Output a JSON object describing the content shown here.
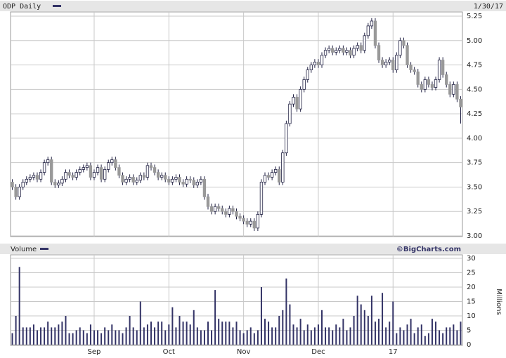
{
  "chart_data": [
    {
      "type": "candlestick",
      "title": "ODP Daily",
      "date": "1/30/17",
      "up_color": "#ffffff",
      "down_color": "#999999",
      "outline_color": "#222244",
      "legend_color": "#333366",
      "grid": true,
      "open": [
        3.55,
        3.5,
        3.4,
        3.5,
        3.55,
        3.58,
        3.6,
        3.62,
        3.58,
        3.65,
        3.75,
        3.78,
        3.55,
        3.52,
        3.54,
        3.58,
        3.65,
        3.62,
        3.6,
        3.65,
        3.68,
        3.7,
        3.72,
        3.6,
        3.65,
        3.7,
        3.58,
        3.68,
        3.75,
        3.78,
        3.7,
        3.62,
        3.55,
        3.58,
        3.6,
        3.55,
        3.57,
        3.62,
        3.6,
        3.72,
        3.7,
        3.65,
        3.6,
        3.62,
        3.58,
        3.55,
        3.58,
        3.6,
        3.55,
        3.53,
        3.58,
        3.57,
        3.52,
        3.55,
        3.58,
        3.4,
        3.3,
        3.25,
        3.3,
        3.28,
        3.25,
        3.22,
        3.28,
        3.25,
        3.2,
        3.18,
        3.15,
        3.12,
        3.15,
        3.08,
        3.22,
        3.55,
        3.62,
        3.6,
        3.65,
        3.68,
        3.55,
        3.85,
        4.15,
        4.35,
        4.42,
        4.3,
        4.5,
        4.6,
        4.7,
        4.75,
        4.78,
        4.75,
        4.85,
        4.9,
        4.92,
        4.88,
        4.9,
        4.92,
        4.88,
        4.9,
        4.85,
        4.92,
        4.95,
        4.9,
        5.05,
        5.15,
        5.2,
        4.95,
        4.8,
        4.75,
        4.78,
        4.8,
        4.7,
        4.85,
        5.0,
        4.95,
        4.75,
        4.7,
        4.68,
        4.55,
        4.5,
        4.6,
        4.55,
        4.52,
        4.6,
        4.8,
        4.65,
        4.55,
        4.45,
        4.55,
        4.4
      ],
      "high": [
        3.58,
        3.53,
        3.53,
        3.58,
        3.61,
        3.63,
        3.65,
        3.65,
        3.68,
        3.78,
        3.81,
        3.81,
        3.58,
        3.57,
        3.61,
        3.68,
        3.68,
        3.65,
        3.68,
        3.71,
        3.73,
        3.75,
        3.75,
        3.68,
        3.73,
        3.73,
        3.71,
        3.78,
        3.81,
        3.81,
        3.73,
        3.65,
        3.61,
        3.63,
        3.63,
        3.6,
        3.65,
        3.65,
        3.75,
        3.75,
        3.73,
        3.68,
        3.65,
        3.65,
        3.61,
        3.61,
        3.63,
        3.63,
        3.58,
        3.61,
        3.61,
        3.6,
        3.58,
        3.61,
        3.61,
        3.43,
        3.33,
        3.33,
        3.33,
        3.31,
        3.28,
        3.31,
        3.31,
        3.28,
        3.23,
        3.21,
        3.18,
        3.18,
        3.18,
        3.25,
        3.58,
        3.65,
        3.65,
        3.68,
        3.71,
        3.71,
        3.88,
        4.18,
        4.38,
        4.45,
        4.45,
        4.53,
        4.63,
        4.73,
        4.78,
        4.81,
        4.81,
        4.88,
        4.93,
        4.95,
        4.95,
        4.93,
        4.95,
        4.95,
        4.93,
        4.93,
        4.95,
        4.98,
        4.98,
        5.08,
        5.18,
        5.23,
        5.23,
        4.98,
        4.83,
        4.81,
        4.83,
        4.83,
        4.88,
        5.03,
        5.03,
        4.98,
        4.78,
        4.73,
        4.71,
        4.58,
        4.63,
        4.63,
        4.58,
        4.63,
        4.83,
        4.83,
        4.68,
        4.58,
        4.58,
        4.58,
        4.43
      ],
      "low": [
        3.47,
        3.37,
        3.37,
        3.47,
        3.52,
        3.55,
        3.57,
        3.55,
        3.55,
        3.62,
        3.72,
        3.52,
        3.49,
        3.49,
        3.51,
        3.55,
        3.59,
        3.57,
        3.57,
        3.62,
        3.65,
        3.67,
        3.57,
        3.57,
        3.62,
        3.55,
        3.55,
        3.65,
        3.72,
        3.67,
        3.59,
        3.52,
        3.52,
        3.55,
        3.52,
        3.52,
        3.54,
        3.57,
        3.57,
        3.67,
        3.62,
        3.57,
        3.57,
        3.55,
        3.52,
        3.52,
        3.55,
        3.52,
        3.5,
        3.5,
        3.54,
        3.49,
        3.49,
        3.52,
        3.37,
        3.27,
        3.22,
        3.22,
        3.25,
        3.22,
        3.19,
        3.19,
        3.22,
        3.17,
        3.15,
        3.12,
        3.09,
        3.09,
        3.05,
        3.05,
        3.19,
        3.52,
        3.57,
        3.57,
        3.62,
        3.52,
        3.52,
        3.82,
        4.12,
        4.32,
        4.27,
        4.27,
        4.47,
        4.57,
        4.67,
        4.72,
        4.72,
        4.72,
        4.82,
        4.87,
        4.85,
        4.85,
        4.87,
        4.85,
        4.85,
        4.82,
        4.82,
        4.89,
        4.87,
        4.87,
        5.02,
        5.12,
        4.92,
        4.77,
        4.72,
        4.72,
        4.75,
        4.67,
        4.67,
        4.82,
        4.92,
        4.72,
        4.67,
        4.65,
        4.52,
        4.47,
        4.47,
        4.52,
        4.49,
        4.49,
        4.57,
        4.62,
        4.52,
        4.42,
        4.42,
        4.37,
        4.15
      ],
      "close": [
        3.5,
        3.4,
        3.5,
        3.55,
        3.58,
        3.6,
        3.62,
        3.58,
        3.65,
        3.75,
        3.78,
        3.55,
        3.52,
        3.54,
        3.58,
        3.65,
        3.62,
        3.6,
        3.65,
        3.68,
        3.7,
        3.72,
        3.6,
        3.65,
        3.7,
        3.58,
        3.68,
        3.75,
        3.78,
        3.7,
        3.62,
        3.55,
        3.58,
        3.6,
        3.55,
        3.57,
        3.62,
        3.6,
        3.72,
        3.7,
        3.65,
        3.6,
        3.62,
        3.58,
        3.55,
        3.58,
        3.6,
        3.55,
        3.53,
        3.58,
        3.57,
        3.52,
        3.55,
        3.58,
        3.4,
        3.3,
        3.25,
        3.3,
        3.28,
        3.25,
        3.22,
        3.28,
        3.25,
        3.2,
        3.18,
        3.15,
        3.12,
        3.15,
        3.08,
        3.22,
        3.55,
        3.62,
        3.6,
        3.65,
        3.68,
        3.55,
        3.85,
        4.15,
        4.35,
        4.42,
        4.3,
        4.5,
        4.6,
        4.7,
        4.75,
        4.78,
        4.75,
        4.85,
        4.9,
        4.92,
        4.88,
        4.9,
        4.92,
        4.88,
        4.9,
        4.85,
        4.92,
        4.95,
        4.9,
        5.05,
        5.15,
        5.2,
        4.95,
        4.8,
        4.75,
        4.78,
        4.8,
        4.7,
        4.85,
        5.0,
        4.95,
        4.75,
        4.7,
        4.68,
        4.55,
        4.5,
        4.6,
        4.55,
        4.52,
        4.6,
        4.8,
        4.65,
        4.55,
        4.45,
        4.55,
        4.4,
        4.32
      ],
      "ylim": [
        3.0,
        5.25
      ],
      "yticks": [
        {
          "value": 3,
          "label": "3.00"
        },
        3.25,
        {
          "value": 3.5,
          "label": "3.50"
        },
        3.75,
        {
          "value": 4,
          "label": "4.00"
        },
        4.25,
        {
          "value": 4.5,
          "label": "4.50"
        },
        4.75,
        {
          "value": 5,
          "label": "5.00"
        },
        5.25
      ]
    },
    {
      "type": "bar",
      "title": "Volume",
      "source": "©BigCharts.com",
      "y_label": "Millions",
      "color": "#333366",
      "grid": true,
      "categories": [
        null,
        null,
        null,
        null,
        null,
        null,
        null,
        null,
        null,
        null,
        null,
        null,
        null,
        null,
        null,
        null,
        null,
        null,
        null,
        null,
        null,
        null,
        null,
        "Sep",
        null,
        null,
        null,
        null,
        null,
        null,
        null,
        null,
        null,
        null,
        null,
        null,
        null,
        null,
        null,
        null,
        null,
        null,
        null,
        null,
        "Oct",
        null,
        null,
        null,
        null,
        null,
        null,
        null,
        null,
        null,
        null,
        null,
        null,
        null,
        null,
        null,
        null,
        null,
        null,
        null,
        null,
        "Nov",
        null,
        null,
        null,
        null,
        null,
        null,
        null,
        null,
        null,
        null,
        null,
        null,
        null,
        null,
        null,
        null,
        null,
        null,
        null,
        null,
        "Dec",
        null,
        null,
        null,
        null,
        null,
        null,
        null,
        null,
        null,
        null,
        null,
        null,
        null,
        null,
        null,
        null,
        null,
        null,
        null,
        null,
        "17",
        null,
        null,
        null,
        null,
        null,
        null,
        null,
        null,
        null,
        null,
        null,
        null,
        null,
        null,
        null,
        null,
        null,
        null,
        null
      ],
      "values": [
        4,
        10,
        27,
        6,
        6,
        6,
        7,
        5,
        6,
        6,
        8,
        6,
        6,
        7,
        8,
        10,
        4,
        4,
        5,
        6,
        5,
        4,
        7,
        5,
        5,
        4,
        6,
        5,
        7,
        5,
        5,
        4,
        6,
        10,
        6,
        5,
        15,
        6,
        7,
        8,
        6,
        8,
        8,
        5,
        7,
        13,
        6,
        10,
        8,
        8,
        7,
        12,
        6,
        5,
        5,
        8,
        5,
        19,
        9,
        8,
        8,
        8,
        6,
        8,
        5,
        4,
        5,
        6,
        4,
        5,
        20,
        9,
        8,
        6,
        6,
        10,
        12,
        23,
        14,
        7,
        6,
        9,
        5,
        7,
        5,
        6,
        7,
        12,
        6,
        6,
        5,
        7,
        6,
        9,
        5,
        6,
        10,
        17,
        14,
        12,
        10,
        17,
        8,
        9,
        18,
        6,
        8,
        15,
        4,
        6,
        5,
        7,
        9,
        4,
        6,
        7,
        3,
        4,
        9,
        8,
        5,
        4,
        6,
        6,
        7,
        5,
        8
      ],
      "ylim": [
        0,
        30
      ],
      "yticks": [
        0,
        5,
        10,
        15,
        20,
        25,
        30
      ]
    }
  ]
}
